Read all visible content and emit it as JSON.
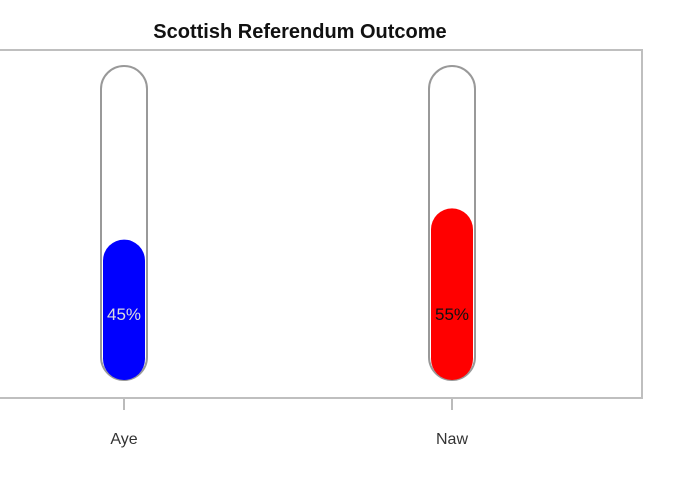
{
  "chart_data": {
    "type": "bar",
    "title": "Scottish Referendum Outcome",
    "xlabel": "",
    "ylabel": "",
    "categories": [
      "Aye",
      "Naw"
    ],
    "values": [
      45,
      55
    ],
    "value_labels": [
      "45%",
      "55%"
    ],
    "ylim": [
      0,
      100
    ],
    "colors": [
      "#0000ff",
      "#ff0000"
    ],
    "label_colors": [
      "#dddddd",
      "#111111"
    ],
    "grid": false,
    "legend": "none"
  }
}
